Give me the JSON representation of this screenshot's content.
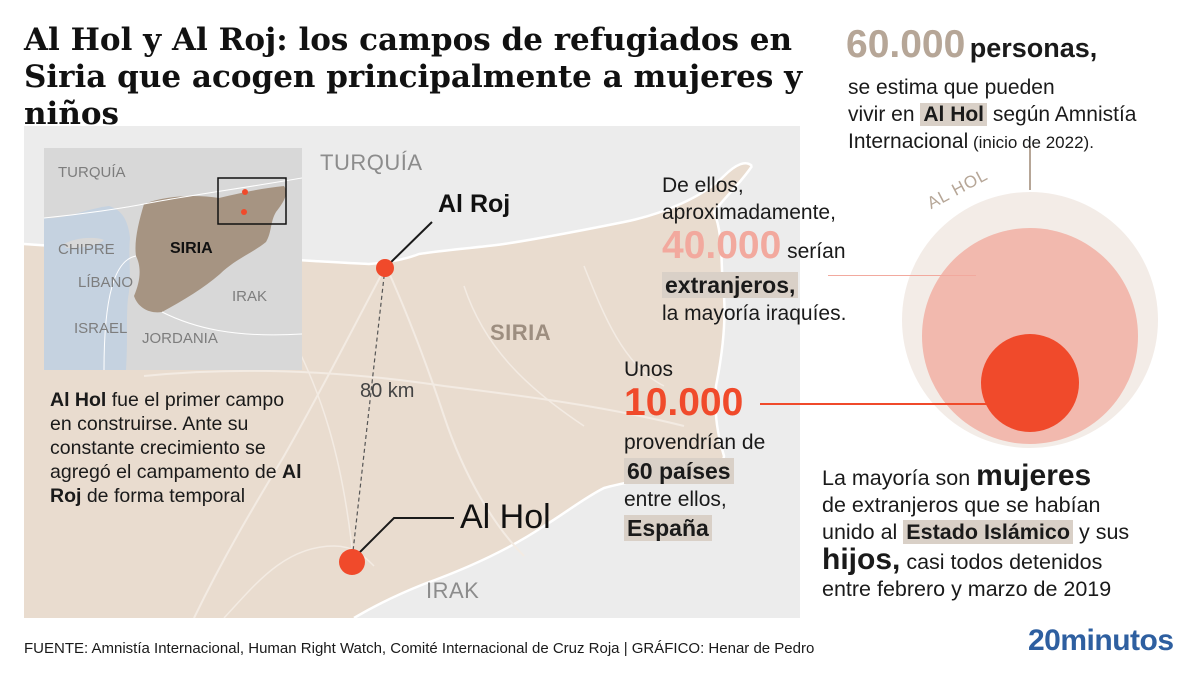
{
  "title": "Al Hol y Al Roj: los campos de refugiados en Siria que acogen principalmente a mujeres y niños",
  "map": {
    "labels": {
      "turquia": "TURQUÍA",
      "siria": "SIRIA",
      "irak": "IRAK"
    },
    "places": {
      "al_roj": "Al Roj",
      "al_hol": "Al Hol"
    },
    "distance": "80 km",
    "inset": {
      "turquia": "TURQUÍA",
      "chipre": "CHIPRE",
      "libano": "LÍBANO",
      "israel": "ISRAEL",
      "jordania": "JORDANIA",
      "irak": "IRAK",
      "siria": "SIRIA"
    },
    "note": {
      "pre": "",
      "al_hol": "Al Hol",
      "mid": " fue el primer campo en construirse. Ante su constante crecimiento se agregó el campamento de ",
      "al_roj": "Al Roj",
      "post": " de forma temporal"
    }
  },
  "stat_total": {
    "number": "60.000",
    "unit": "personas,",
    "line1": "se estima que pueden",
    "line2_pre": "vivir en ",
    "line2_hl": "Al Hol",
    "line2_post": " según Amnistía",
    "line3": "Internacional",
    "line3_small": " (inicio de 2022)."
  },
  "circle_label": "AL HOL",
  "stat_foreign": {
    "line1": "De ellos,",
    "line2": "aproximadamente,",
    "number": "40.000",
    "after_number": " serían",
    "highlight": "extranjeros,",
    "line5": "la mayoría iraquíes."
  },
  "stat_countries": {
    "line1": "Unos",
    "number": "10.000",
    "line3": "provendrían de",
    "highlight": "60 países",
    "line5": "entre ellos,",
    "highlight2": "España"
  },
  "summary": {
    "p1": "La mayoría son ",
    "b1": "mujeres",
    "p2": "de extranjeros que se habían",
    "p3": "unido al ",
    "hl": "Estado Islámico",
    "p4": " y sus",
    "b2": "hijos,",
    "p5": " casi todos detenidos",
    "p6": "entre febrero y marzo de 2019"
  },
  "chart_data": {
    "type": "proportional-circles",
    "series": [
      {
        "name": "Al Hol",
        "values": [
          60000
        ]
      },
      {
        "name": "extranjeros",
        "values": [
          40000
        ]
      },
      {
        "name": "60 países",
        "values": [
          10000
        ]
      }
    ]
  },
  "colors": {
    "land": "#e9dccf",
    "inset_syria": "#a69482",
    "sea": "#c5d2e0",
    "accent_red": "#f04a2b",
    "accent_pink": "#f2a99e",
    "accent_tan": "#b6a697",
    "highlight_bg": "#d9d0c7",
    "logo_blue": "#2e5fa0"
  },
  "footer": "FUENTE: Amnistía Internacional, Human Right Watch, Comité Internacional de Cruz Roja  |  GRÁFICO: Henar de Pedro",
  "logo": "20minutos"
}
